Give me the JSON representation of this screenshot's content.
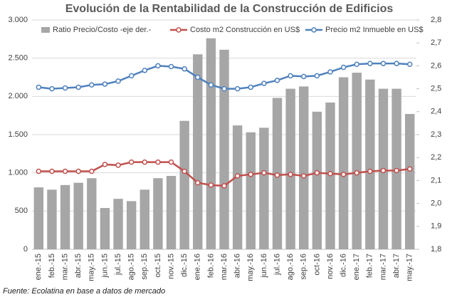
{
  "chart_data": {
    "type": "bar-line",
    "title": "Evolución de la Rentabilidad de la Construcción de Edificios",
    "source": "Fuente: Ecolatina en base a datos de mercado",
    "categories": [
      "ene.-15",
      "feb.-15",
      "mar.-15",
      "abr.-15",
      "may.-15",
      "jun.-15",
      "jul.-15",
      "ago.-15",
      "sep.-15",
      "oct.-15",
      "nov.-15",
      "dic.-15",
      "ene.-16",
      "feb.-16",
      "mar.-16",
      "abr.-16",
      "may.-16",
      "jun.-16",
      "jul.-16",
      "ago.-16",
      "sep.-16",
      "oct-16",
      "nov.-16",
      "dic.-16",
      "ene.-17",
      "feb.-17",
      "mar.-17",
      "abr.-17",
      "may.-17"
    ],
    "series": [
      {
        "name": "Ratio Precio/Costo -eje der.-",
        "type": "bar",
        "axis": "y2",
        "color": "#a6a6a6",
        "values": [
          2.07,
          2.06,
          2.08,
          2.09,
          2.11,
          1.98,
          2.02,
          2.01,
          2.06,
          2.11,
          2.12,
          2.36,
          2.65,
          2.72,
          2.67,
          2.34,
          2.31,
          2.33,
          2.46,
          2.5,
          2.51,
          2.4,
          2.44,
          2.55,
          2.57,
          2.54,
          2.5,
          2.5,
          2.39
        ]
      },
      {
        "name": "Costo m2 Construcción en US$",
        "type": "line",
        "color": "#c0504d",
        "values": [
          1020,
          1020,
          1020,
          1020,
          1020,
          1110,
          1100,
          1140,
          1140,
          1140,
          1140,
          1020,
          870,
          840,
          830,
          960,
          980,
          1000,
          970,
          980,
          960,
          1000,
          990,
          980,
          1000,
          1020,
          1030,
          1030,
          1050
        ]
      },
      {
        "name": "Precio m2 Inmueble en US$",
        "type": "line",
        "color": "#4f81bd",
        "values": [
          2120,
          2100,
          2110,
          2120,
          2150,
          2160,
          2200,
          2270,
          2340,
          2400,
          2390,
          2360,
          2250,
          2150,
          2100,
          2100,
          2120,
          2170,
          2210,
          2270,
          2260,
          2270,
          2320,
          2380,
          2420,
          2430,
          2430,
          2430,
          2420
        ]
      }
    ],
    "ylim": [
      0,
      3000
    ],
    "yticks": [
      0,
      500,
      {
        "value": 1000,
        "label": "1.000"
      },
      {
        "value": 1500,
        "label": "1.500"
      },
      {
        "value": 2000,
        "label": "2.000"
      },
      {
        "value": 2500,
        "label": "2.500"
      },
      {
        "value": 3000,
        "label": "3.000"
      }
    ],
    "y2lim": [
      1.8,
      2.8
    ],
    "y2ticks": [
      {
        "value": 1.8,
        "label": "1,8"
      },
      {
        "value": 1.9,
        "label": "1,9"
      },
      {
        "value": 2.0,
        "label": "2,0"
      },
      {
        "value": 2.1,
        "label": "2,1"
      },
      {
        "value": 2.2,
        "label": "2,2"
      },
      {
        "value": 2.3,
        "label": "2,3"
      },
      {
        "value": 2.4,
        "label": "2,4"
      },
      {
        "value": 2.5,
        "label": "2,5"
      },
      {
        "value": 2.6,
        "label": "2,6"
      },
      {
        "value": 2.7,
        "label": "2,7"
      },
      {
        "value": 2.8,
        "label": "2,8"
      }
    ],
    "grid": true,
    "legend": "top"
  }
}
